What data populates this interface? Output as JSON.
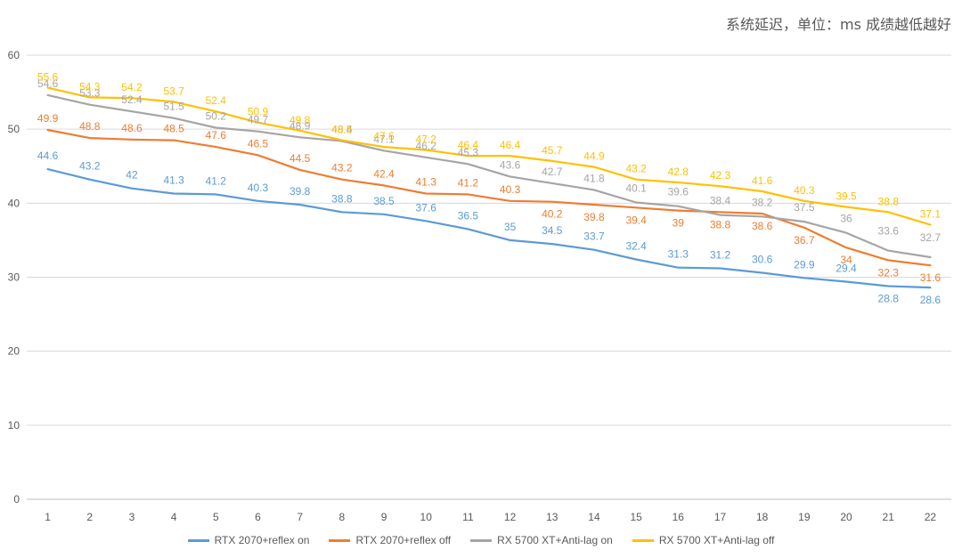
{
  "chart_data": {
    "type": "line",
    "title": "系统延迟，单位：ms 成绩越低越好",
    "xlabel": "",
    "ylabel": "",
    "ylim": [
      0,
      60
    ],
    "yticks": [
      0,
      10,
      20,
      30,
      40,
      50,
      60
    ],
    "grid": true,
    "legend_position": "bottom",
    "x": [
      1,
      2,
      3,
      4,
      5,
      6,
      7,
      8,
      9,
      10,
      11,
      12,
      13,
      14,
      15,
      16,
      17,
      18,
      19,
      20,
      21,
      22
    ],
    "series": [
      {
        "name": "RTX 2070+reflex on",
        "color": "#5B9BD5",
        "values": [
          44.6,
          43.2,
          42,
          41.3,
          41.2,
          40.3,
          39.8,
          38.8,
          38.5,
          37.6,
          36.5,
          35,
          34.5,
          33.7,
          32.4,
          31.3,
          31.2,
          30.6,
          29.9,
          29.4,
          28.8,
          28.6
        ]
      },
      {
        "name": "RTX 2070+reflex off",
        "color": "#ED7D31",
        "values": [
          49.9,
          48.8,
          48.6,
          48.5,
          47.6,
          46.5,
          44.5,
          43.2,
          42.4,
          41.3,
          41.2,
          40.3,
          40.2,
          39.8,
          39.4,
          39,
          38.8,
          38.6,
          36.7,
          34,
          32.3,
          31.6
        ]
      },
      {
        "name": "RX 5700 XT+Anti-lag on",
        "color": "#A5A5A5",
        "values": [
          54.6,
          53.3,
          52.4,
          51.5,
          50.2,
          49.7,
          48.9,
          48.4,
          47.1,
          46.2,
          45.3,
          43.6,
          42.7,
          41.8,
          40.1,
          39.6,
          38.4,
          38.2,
          37.5,
          36,
          33.6,
          32.7
        ]
      },
      {
        "name": "RX 5700 XT+Anti-lag off",
        "color": "#FFC000",
        "values": [
          55.6,
          54.3,
          54.2,
          53.7,
          52.4,
          50.9,
          49.8,
          48.5,
          47.6,
          47.2,
          46.4,
          46.4,
          45.7,
          44.9,
          43.2,
          42.8,
          42.3,
          41.6,
          40.3,
          39.5,
          38.8,
          37.1
        ]
      }
    ]
  }
}
